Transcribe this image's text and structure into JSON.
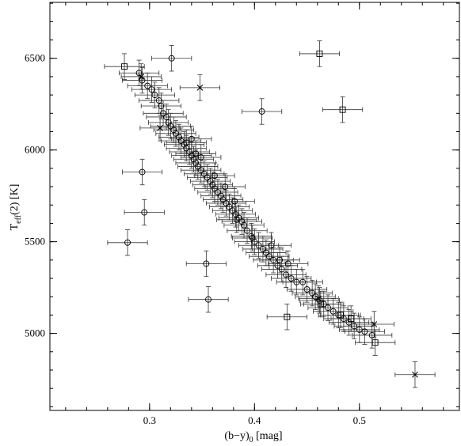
{
  "chart_data": {
    "type": "scatter",
    "xlabel_main": "(b−y)",
    "xlabel_sub": "0",
    "xlabel_unit": " [mag]",
    "ylabel_main": "T",
    "ylabel_sub": "eff",
    "ylabel_unit": "(2) [K]",
    "xlim": [
      0.205,
      0.5953
    ],
    "ylim": [
      4580,
      6805
    ],
    "xticks": [
      {
        "value": 0.3,
        "label": "0.3"
      },
      {
        "value": 0.4,
        "label": "0.4"
      },
      {
        "value": 0.5,
        "label": "0.5"
      }
    ],
    "yticks": [
      {
        "value": 5000,
        "label": "5000"
      },
      {
        "value": 5500,
        "label": "5500"
      },
      {
        "value": 6000,
        "label": "6000"
      },
      {
        "value": 6500,
        "label": "6500"
      }
    ],
    "x_minor_step": 0.02,
    "y_minor_step": 100,
    "xerr_default": 0.019,
    "yerr_default": 70,
    "grid": false,
    "series": [
      {
        "marker": "circle",
        "points": [
          [
            0.29,
            6420
          ],
          [
            0.293,
            6380
          ],
          [
            0.298,
            6350
          ],
          [
            0.302,
            6330
          ],
          [
            0.305,
            6300
          ],
          [
            0.309,
            6270
          ],
          [
            0.311,
            6240
          ],
          [
            0.313,
            6200
          ],
          [
            0.316,
            6180
          ],
          [
            0.318,
            6150
          ],
          [
            0.32,
            6130
          ],
          [
            0.323,
            6110
          ],
          [
            0.325,
            6090
          ],
          [
            0.328,
            6070
          ],
          [
            0.33,
            6050
          ],
          [
            0.333,
            6030
          ],
          [
            0.335,
            6010
          ],
          [
            0.338,
            5990
          ],
          [
            0.34,
            5970
          ],
          [
            0.342,
            5950
          ],
          [
            0.344,
            5930
          ],
          [
            0.346,
            5910
          ],
          [
            0.349,
            5890
          ],
          [
            0.352,
            5870
          ],
          [
            0.355,
            5850
          ],
          [
            0.358,
            5830
          ],
          [
            0.36,
            5810
          ],
          [
            0.362,
            5790
          ],
          [
            0.365,
            5770
          ],
          [
            0.368,
            5750
          ],
          [
            0.37,
            5730
          ],
          [
            0.373,
            5710
          ],
          [
            0.376,
            5690
          ],
          [
            0.379,
            5670
          ],
          [
            0.382,
            5650
          ],
          [
            0.385,
            5630
          ],
          [
            0.388,
            5610
          ],
          [
            0.39,
            5590
          ],
          [
            0.393,
            5560
          ],
          [
            0.397,
            5530
          ],
          [
            0.4,
            5500
          ],
          [
            0.404,
            5480
          ],
          [
            0.408,
            5460
          ],
          [
            0.411,
            5440
          ],
          [
            0.414,
            5420
          ],
          [
            0.418,
            5400
          ],
          [
            0.422,
            5370
          ],
          [
            0.426,
            5350
          ],
          [
            0.43,
            5320
          ],
          [
            0.435,
            5300
          ],
          [
            0.44,
            5280
          ],
          [
            0.446,
            5280
          ],
          [
            0.45,
            5240
          ],
          [
            0.455,
            5220
          ],
          [
            0.458,
            5200
          ],
          [
            0.462,
            5180
          ],
          [
            0.466,
            5160
          ],
          [
            0.47,
            5140
          ],
          [
            0.475,
            5120
          ],
          [
            0.48,
            5100
          ],
          [
            0.485,
            5080
          ],
          [
            0.49,
            5060
          ],
          [
            0.495,
            5040
          ],
          [
            0.5,
            5020
          ],
          [
            0.505,
            5010
          ],
          [
            0.512,
            4990
          ],
          [
            0.321,
            6500
          ],
          [
            0.407,
            6210
          ],
          [
            0.293,
            5880
          ],
          [
            0.295,
            5660
          ],
          [
            0.279,
            5495
          ],
          [
            0.354,
            5380
          ],
          [
            0.356,
            5185
          ],
          [
            0.34,
            6060
          ],
          [
            0.344,
            5980
          ],
          [
            0.335,
            6040
          ],
          [
            0.362,
            5860
          ],
          [
            0.372,
            5800
          ],
          [
            0.349,
            5960
          ],
          [
            0.381,
            5720
          ],
          [
            0.383,
            5620
          ],
          [
            0.398,
            5520
          ],
          [
            0.416,
            5480
          ],
          [
            0.424,
            5400
          ],
          [
            0.432,
            5380
          ]
        ]
      },
      {
        "marker": "square",
        "points": [
          [
            0.276,
            6455
          ],
          [
            0.462,
            6525
          ],
          [
            0.484,
            6220
          ],
          [
            0.431,
            5090
          ],
          [
            0.515,
            4950
          ],
          [
            0.482,
            5100
          ],
          [
            0.492,
            5080
          ],
          [
            0.463,
            5160
          ]
        ]
      },
      {
        "marker": "cross",
        "points": [
          [
            0.348,
            6340
          ],
          [
            0.31,
            6120
          ],
          [
            0.553,
            4775
          ],
          [
            0.514,
            5050
          ],
          [
            0.461,
            5190
          ],
          [
            0.292,
            6400
          ]
        ]
      }
    ]
  }
}
